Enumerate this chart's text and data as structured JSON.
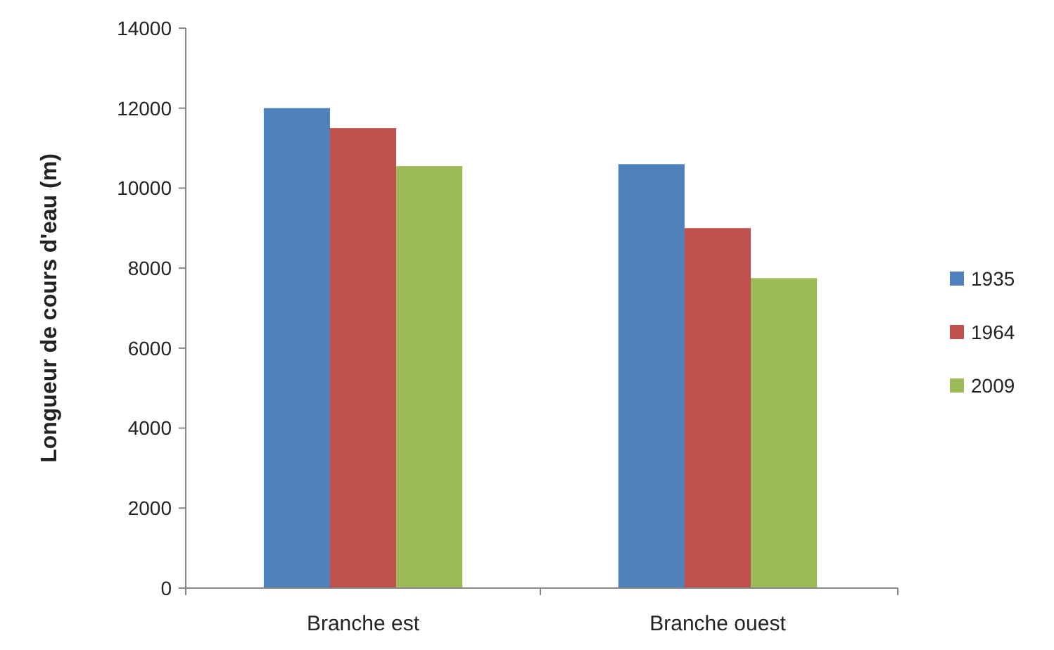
{
  "chart_data": {
    "type": "bar",
    "ylabel": "Longueur de cours d'eau (m)",
    "categories": [
      "Branche est",
      "Branche ouest"
    ],
    "series": [
      {
        "name": "1935",
        "color": "#4f81bd",
        "values": [
          12000,
          10600
        ]
      },
      {
        "name": "1964",
        "color": "#c0504d",
        "values": [
          11500,
          9000
        ]
      },
      {
        "name": "2009",
        "color": "#9bbb59",
        "values": [
          10550,
          7750
        ]
      }
    ],
    "ylim": [
      0,
      14000
    ],
    "yticks": [
      0,
      2000,
      4000,
      6000,
      8000,
      10000,
      12000,
      14000
    ],
    "grid": false,
    "legend": "right"
  }
}
